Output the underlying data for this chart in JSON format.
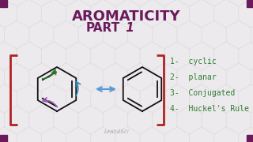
{
  "title_line1": "AROMATICITY",
  "title_line2": "PART 1",
  "title_color": "#6B1A5C",
  "bg_color": "#EDEAED",
  "hex_bg_color": "#D8D4D8",
  "bracket_color": "#B22222",
  "list_items": [
    "1-  cyclic",
    "2-  planar",
    "3-  Conjugated",
    "4-  Huckel's Rule"
  ],
  "list_color": "#2E7D32",
  "watermark": "Leah4Sci",
  "corner_color": "#6B1A5C",
  "arrow_color": "#5B9BD5",
  "benzene_color": "#111111",
  "curve_arrow_colors": [
    "#9B59B6",
    "#2E7D32",
    "#2980B9"
  ],
  "hex_bg_r": 18,
  "hex_bg_alpha": 0.35
}
